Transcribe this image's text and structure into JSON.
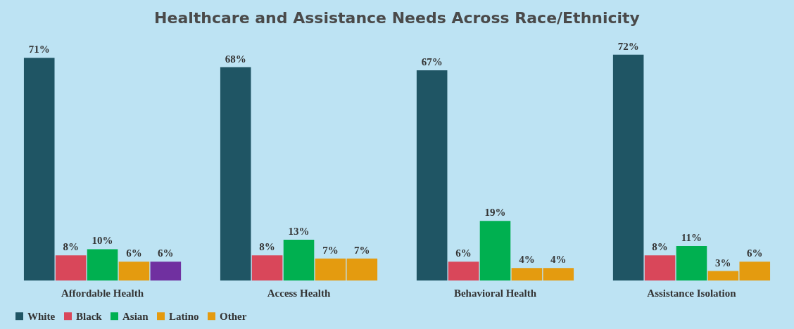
{
  "chart_data": {
    "type": "bar",
    "title": "Healthcare and Assistance Needs Across Race/Ethnicity",
    "categories": [
      "Affordable Health",
      "Access Health",
      "Behavioral Health",
      "Assistance Isolation"
    ],
    "series": [
      {
        "name": "White",
        "color": "#1f5564",
        "values": [
          71,
          68,
          67,
          72
        ],
        "value_labels": [
          "71%",
          "68%",
          "67%",
          "72%"
        ]
      },
      {
        "name": "Black",
        "color": "#d9475a",
        "values": [
          8,
          8,
          6,
          8
        ],
        "value_labels": [
          "8%",
          "8%",
          "6%",
          "8%"
        ]
      },
      {
        "name": "Asian",
        "color": "#00b050",
        "values": [
          10,
          13,
          19,
          11
        ],
        "value_labels": [
          "10%",
          "13%",
          "19%",
          "11%"
        ]
      },
      {
        "name": "Latino",
        "color": "#e49b0f",
        "values": [
          6,
          7,
          4,
          3
        ],
        "value_labels": [
          "6%",
          "7%",
          "4%",
          "3%"
        ]
      },
      {
        "name": "Other",
        "color": "#e49b0f",
        "colors": [
          "#7030a0",
          "#e49b0f",
          "#e49b0f",
          "#e49b0f"
        ],
        "values": [
          6,
          7,
          4,
          6
        ],
        "value_labels": [
          "6%",
          "7%",
          "4%",
          "6%"
        ]
      }
    ],
    "legend": "bottom",
    "grid": false
  }
}
